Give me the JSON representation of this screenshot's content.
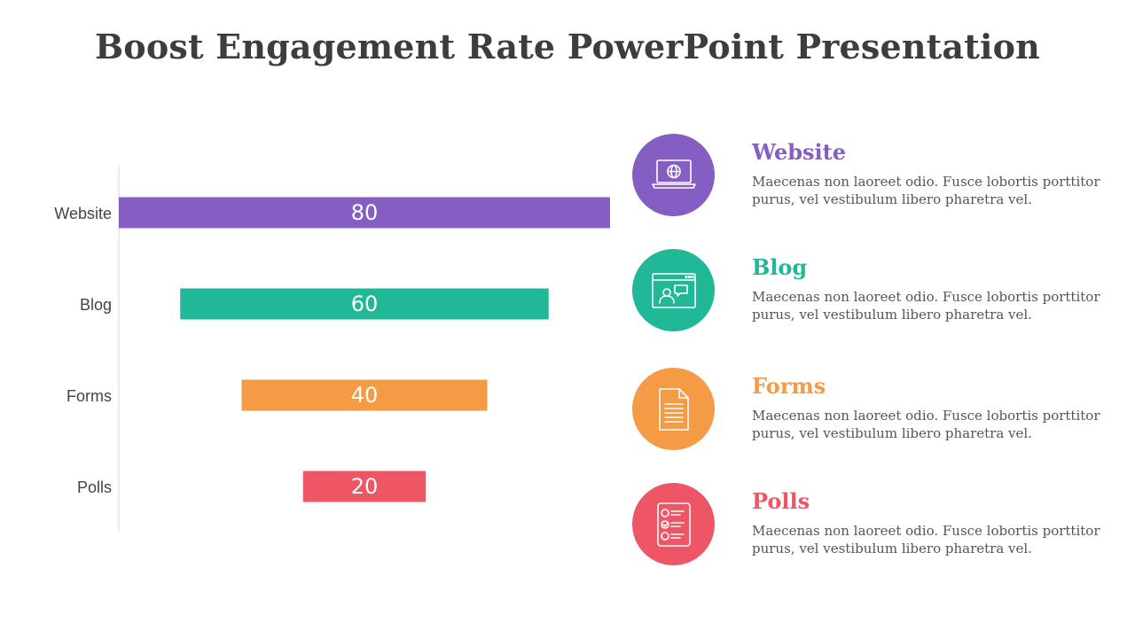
{
  "title": "Boost Engagement Rate PowerPoint Presentation",
  "chart_data": {
    "type": "bar",
    "orientation": "horizontal",
    "style": "centered funnel",
    "categories": [
      "Website",
      "Blog",
      "Forms",
      "Polls"
    ],
    "values": [
      80,
      60,
      40,
      20
    ],
    "colors": [
      "#845EC2",
      "#21B898",
      "#F59A45",
      "#EE5565"
    ],
    "xlim": [
      0,
      80
    ],
    "grid": false
  },
  "items": [
    {
      "title": "Website",
      "desc": "Maecenas non laoreet odio. Fusce lobortis porttitor purus, vel vestibulum libero pharetra vel.",
      "color": "#845EC2",
      "icon": "laptop-globe-icon"
    },
    {
      "title": "Blog",
      "desc": "Maecenas non laoreet odio. Fusce lobortis porttitor purus, vel vestibulum libero pharetra vel.",
      "color": "#21B898",
      "icon": "browser-chat-icon"
    },
    {
      "title": "Forms",
      "desc": "Maecenas non laoreet odio. Fusce lobortis porttitor purus, vel vestibulum libero pharetra vel.",
      "color": "#F59A45",
      "icon": "document-icon"
    },
    {
      "title": "Polls",
      "desc": "Maecenas non laoreet odio. Fusce lobortis porttitor purus, vel vestibulum libero pharetra vel.",
      "color": "#EE5565",
      "icon": "checklist-icon"
    }
  ]
}
